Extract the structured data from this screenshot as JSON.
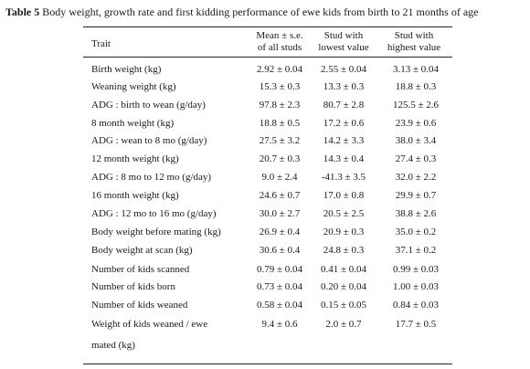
{
  "caption": {
    "label": "Table 5",
    "text": " Body weight, growth rate and first kidding performance of ewe kids from birth to 21 months of age"
  },
  "header": {
    "trait": "Trait",
    "mean_line1": "Mean ± s.e.",
    "mean_line2": "of all studs",
    "lowest_line1": "Stud with",
    "lowest_line2": "lowest value",
    "highest_line1": "Stud with",
    "highest_line2": "highest value"
  },
  "rows": [
    {
      "trait": "Birth weight (kg)",
      "mean": "2.92 ± 0.04",
      "lowest": "2.55 ± 0.04",
      "highest": "3.13 ± 0.04"
    },
    {
      "trait": "Weaning weight (kg)",
      "mean": "15.3 ± 0.3",
      "lowest": "13.3 ± 0.3",
      "highest": "18.8 ± 0.3"
    },
    {
      "trait": "ADG : birth to wean (g/day)",
      "mean": "97.8 ± 2.3",
      "lowest": "80.7 ± 2.8",
      "highest": "125.5 ± 2.6"
    },
    {
      "trait": "8 month weight (kg)",
      "mean": "18.8 ± 0.5",
      "lowest": "17.2 ± 0.6",
      "highest": "23.9 ± 0.6"
    },
    {
      "trait": "ADG : wean to 8 mo (g/day)",
      "mean": "27.5 ± 3.2",
      "lowest": "14.2 ± 3.3",
      "highest": "38.0 ± 3.4"
    },
    {
      "trait": "12 month weight (kg)",
      "mean": "20.7 ± 0.3",
      "lowest": "14.3 ± 0.4",
      "highest": "27.4 ± 0.3"
    },
    {
      "trait": "ADG : 8 mo to 12 mo (g/day)",
      "mean": "9.0 ± 2.4",
      "lowest": "-41.3 ± 3.5",
      "highest": "32.0 ± 2.2"
    },
    {
      "trait": "16 month weight (kg)",
      "mean": "24.6 ± 0.7",
      "lowest": "17.0 ± 0.8",
      "highest": "29.9 ± 0.7"
    },
    {
      "trait": "ADG : 12 mo to 16 mo (g/day)",
      "mean": "30.0 ± 2.7",
      "lowest": "20.5 ± 2.5",
      "highest": "38.8 ± 2.6"
    },
    {
      "trait": "Body weight before mating (kg)",
      "mean": "26.9 ± 0.4",
      "lowest": "20.9 ± 0.3",
      "highest": "35.0 ± 0.2"
    },
    {
      "trait": "Body weight at scan (kg)",
      "mean": "30.6 ± 0.4",
      "lowest": "24.8 ± 0.3",
      "highest": "37.1 ± 0.2"
    },
    {
      "trait": "Number of kids scanned",
      "mean": "0.79 ± 0.04",
      "lowest": "0.41 ± 0.04",
      "highest": "0.99 ± 0.03"
    },
    {
      "trait": "Number of kids born",
      "mean": "0.73 ± 0.04",
      "lowest": "0.20 ± 0.04",
      "highest": "1.00 ± 0.03"
    },
    {
      "trait": "Number of kids weaned",
      "mean": "0.58 ± 0.04",
      "lowest": "0.15 ± 0.05",
      "highest": "0.84 ± 0.03"
    },
    {
      "trait": "Weight of kids weaned / ewe",
      "trait_line2": "mated (kg)",
      "mean": "9.4 ± 0.6",
      "lowest": "2.0 ± 0.7",
      "highest": "17.7 ± 0.5"
    }
  ]
}
